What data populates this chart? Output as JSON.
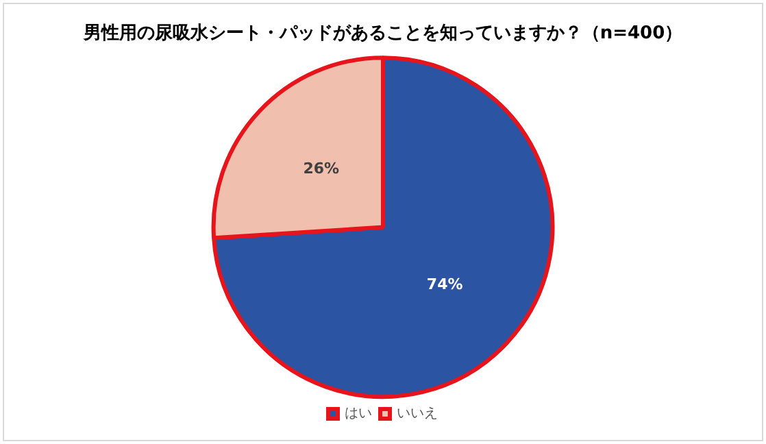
{
  "chart_data": {
    "type": "pie",
    "title": "男性用の尿吸水シート・パッドがあることを知っていますか？（n=400）",
    "categories": [
      "はい",
      "いいえ"
    ],
    "values": [
      74,
      26
    ],
    "colors": [
      "#2b55a2",
      "#f0bfae"
    ],
    "value_labels": [
      "74%",
      "26%"
    ],
    "legend": "bottom"
  }
}
